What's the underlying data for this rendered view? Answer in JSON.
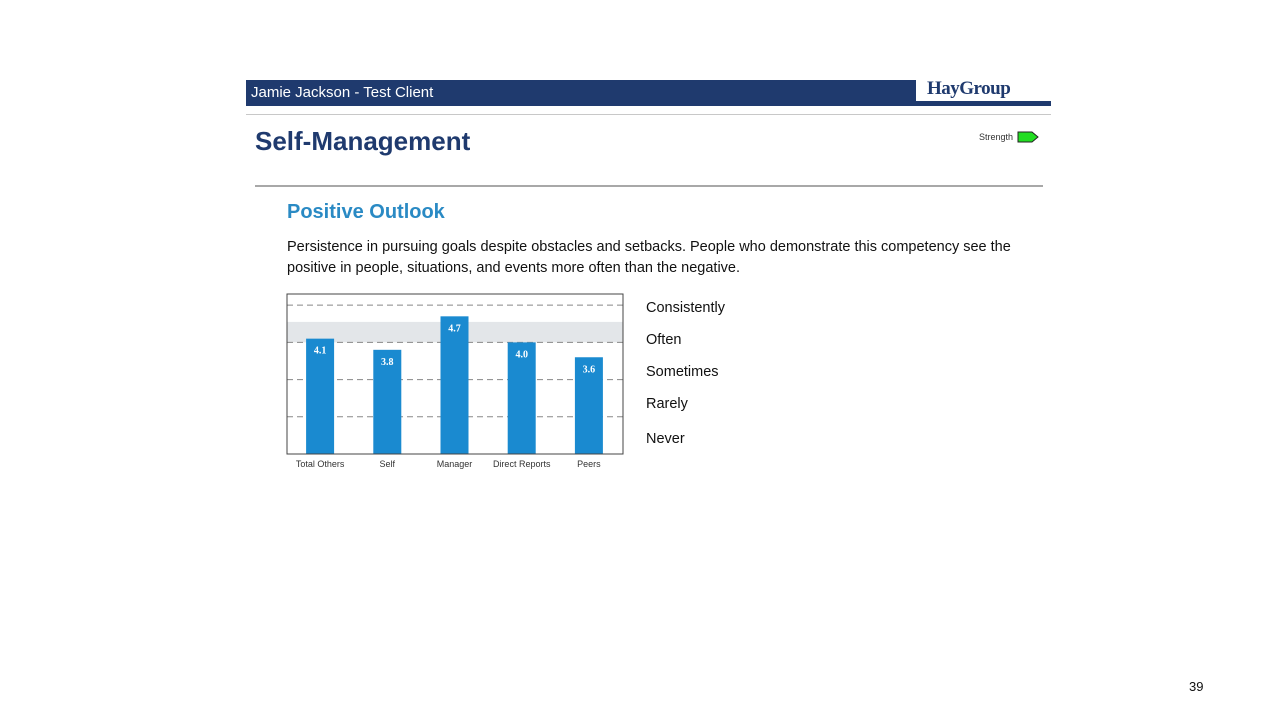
{
  "header": {
    "client": "Jamie Jackson - Test Client",
    "brand": "HayGroup"
  },
  "page": {
    "title": "Self-Management",
    "legend_label": "Strength",
    "strength_color": "#22dd22",
    "page_number": "39"
  },
  "section": {
    "title": "Positive Outlook",
    "description": "Persistence in pursuing goals despite obstacles and setbacks. People who demonstrate this competency see the positive in people, situations, and events more often than the negative."
  },
  "scale_labels": [
    "Consistently",
    "Often",
    "Sometimes",
    "Rarely",
    "Never"
  ],
  "chart_data": {
    "type": "bar",
    "categories": [
      "Total Others",
      "Self",
      "Manager",
      "Direct Reports",
      "Peers"
    ],
    "values": [
      4.1,
      3.8,
      4.7,
      4.0,
      3.6
    ],
    "data_labels": [
      "4.1",
      "3.8",
      "4.7",
      "4.0",
      "3.6"
    ],
    "ylim": [
      1,
      5.3
    ],
    "gridlines": [
      2,
      3,
      4,
      5
    ],
    "band": [
      4.0,
      4.55
    ],
    "bar_color": "#1a8ad0",
    "band_color": "#e3e6e9",
    "grid": true
  }
}
